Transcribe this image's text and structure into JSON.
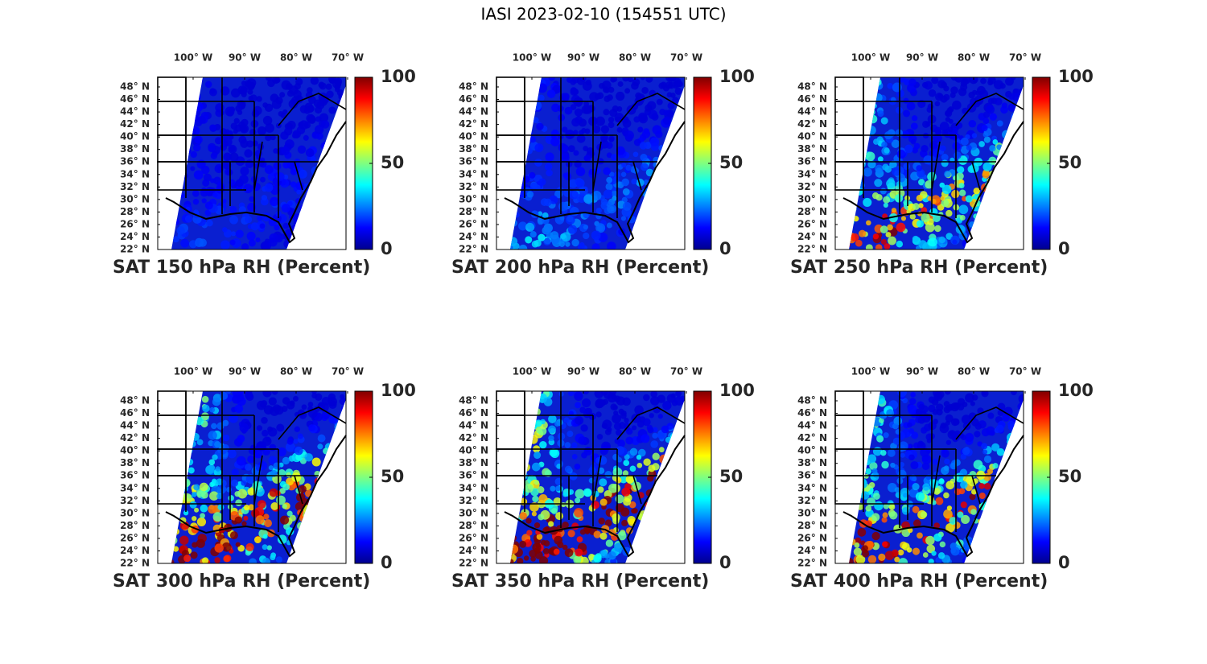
{
  "title": "IASI 2023-02-10 (154551 UTC)",
  "panels": [
    {
      "title": "SAT 150 hPa RH (Percent)"
    },
    {
      "title": "SAT 200 hPa RH (Percent)"
    },
    {
      "title": "SAT 250 hPa RH (Percent)"
    },
    {
      "title": "SAT 300 hPa RH (Percent)"
    },
    {
      "title": "SAT 350 hPa RH (Percent)"
    },
    {
      "title": "SAT 400 hPa RH (Percent)"
    }
  ],
  "lon_ticks": [
    {
      "value": -100,
      "label": "100° W"
    },
    {
      "value": -90,
      "label": "90° W"
    },
    {
      "value": -80,
      "label": "80° W"
    },
    {
      "value": -70,
      "label": "70° W"
    }
  ],
  "lat_ticks": [
    {
      "value": 22,
      "label": "22° N"
    },
    {
      "value": 24,
      "label": "24° N"
    },
    {
      "value": 26,
      "label": "26° N"
    },
    {
      "value": 28,
      "label": "28° N"
    },
    {
      "value": 30,
      "label": "30° N"
    },
    {
      "value": 32,
      "label": "32° N"
    },
    {
      "value": 34,
      "label": "34° N"
    },
    {
      "value": 36,
      "label": "36° N"
    },
    {
      "value": 38,
      "label": "38° N"
    },
    {
      "value": 40,
      "label": "40° N"
    },
    {
      "value": 42,
      "label": "42° N"
    },
    {
      "value": 44,
      "label": "44° N"
    },
    {
      "value": 46,
      "label": "46° N"
    },
    {
      "value": 48,
      "label": "48° N"
    }
  ],
  "colorbar": {
    "colormap": "jet",
    "lim": [
      0,
      100
    ],
    "ticks": [
      0,
      50,
      100
    ]
  }
}
